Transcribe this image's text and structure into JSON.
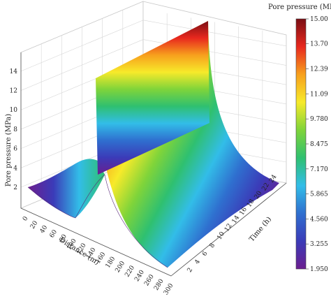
{
  "chart_data": {
    "type": "surface3d",
    "title": "",
    "xlabel": "Distance (m)",
    "ylabel": "Time (h)",
    "zlabel": "Pore pressure (MPa)",
    "colorbar_label": "Pore pressure (MPa)",
    "x_ticks": [
      "0",
      "20",
      "40",
      "60",
      "80",
      "100",
      "120",
      "140",
      "160",
      "180",
      "200",
      "220",
      "240",
      "260",
      "280",
      "300"
    ],
    "y_ticks": [
      "2",
      "4",
      "6",
      "8",
      "10",
      "12",
      "14",
      "16",
      "18",
      "20",
      "22",
      "24"
    ],
    "z_ticks": [
      "2",
      "4",
      "6",
      "8",
      "10",
      "12",
      "14"
    ],
    "colorbar_ticks": [
      "1.950",
      "3.255",
      "4.560",
      "5.865",
      "7.170",
      "8.475",
      "9.780",
      "11.09",
      "12.39",
      "13.70",
      "15.00"
    ],
    "xlim": [
      0,
      300
    ],
    "ylim": [
      0,
      24
    ],
    "zlim": [
      2,
      15
    ],
    "colorbar_range": [
      1.95,
      15.0
    ],
    "colorbar_colors": [
      "#6b1e8f",
      "#3b3bb8",
      "#2f6fcf",
      "#32bde8",
      "#2fc070",
      "#7fd43a",
      "#f7ea2a",
      "#f7a01d",
      "#e8281e",
      "#7a0e14"
    ],
    "surface": {
      "description_values": {
        "wellbore_distance": 100,
        "peak_pressure": 15.0,
        "far_field_pressure": 2.0,
        "near_boundary_pressure": 3.4
      }
    }
  }
}
